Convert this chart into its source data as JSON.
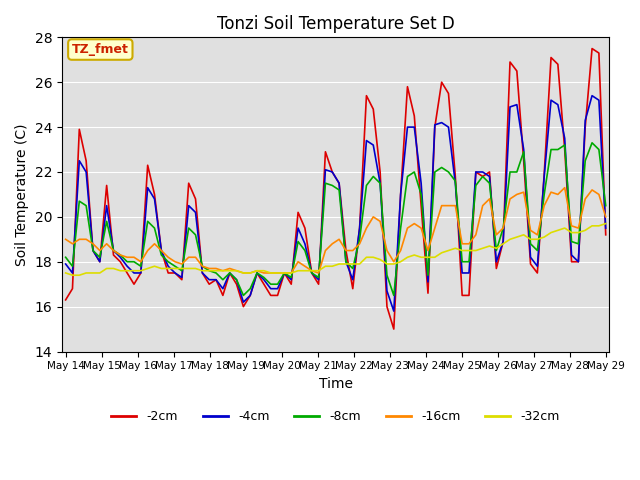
{
  "title": "Tonzi Soil Temperature Set D",
  "xlabel": "Time",
  "ylabel": "Soil Temperature (C)",
  "ylim": [
    14,
    28
  ],
  "yticks": [
    14,
    16,
    18,
    20,
    22,
    24,
    26,
    28
  ],
  "annotation_label": "TZ_fmet",
  "annotation_box_color": "#ffffcc",
  "annotation_box_edge": "#ccaa00",
  "annotation_text_color": "#cc2200",
  "background_color": "#e0e0e0",
  "grid_color": "#ffffff",
  "lines": [
    {
      "label": "-2cm",
      "color": "#dd0000",
      "linewidth": 1.2,
      "values": [
        16.3,
        16.8,
        23.9,
        22.5,
        18.5,
        18.0,
        21.4,
        18.3,
        18.0,
        17.5,
        17.0,
        17.5,
        22.3,
        21.0,
        18.5,
        17.5,
        17.5,
        17.2,
        21.5,
        20.8,
        17.5,
        17.0,
        17.2,
        16.5,
        17.5,
        17.0,
        16.0,
        16.5,
        17.5,
        17.0,
        16.5,
        16.5,
        17.5,
        17.0,
        20.2,
        19.5,
        17.5,
        17.0,
        22.9,
        22.0,
        21.5,
        18.5,
        16.8,
        19.5,
        25.4,
        24.8,
        22.0,
        16.0,
        15.0,
        21.0,
        25.8,
        24.5,
        20.5,
        16.6,
        24.0,
        26.0,
        25.5,
        21.8,
        16.5,
        16.5,
        22.0,
        21.8,
        22.0,
        17.7,
        18.9,
        26.9,
        26.5,
        22.5,
        17.9,
        17.5,
        21.9,
        27.1,
        26.8,
        23.0,
        18.0,
        18.0,
        24.0,
        27.5,
        27.3,
        19.2
      ]
    },
    {
      "label": "-4cm",
      "color": "#0000cc",
      "linewidth": 1.2,
      "values": [
        17.9,
        17.5,
        22.5,
        22.0,
        18.5,
        18.0,
        20.5,
        18.5,
        18.2,
        17.8,
        17.5,
        17.5,
        21.3,
        20.8,
        18.5,
        17.8,
        17.5,
        17.3,
        20.5,
        20.2,
        17.5,
        17.2,
        17.2,
        16.8,
        17.5,
        17.2,
        16.2,
        16.5,
        17.5,
        17.2,
        16.8,
        16.8,
        17.5,
        17.2,
        19.5,
        18.8,
        17.5,
        17.2,
        22.1,
        22.0,
        21.5,
        18.0,
        17.2,
        19.5,
        23.4,
        23.2,
        21.5,
        16.7,
        15.8,
        21.0,
        24.0,
        24.0,
        21.5,
        17.1,
        24.1,
        24.2,
        24.0,
        21.5,
        17.5,
        17.5,
        22.0,
        22.0,
        21.8,
        18.0,
        18.9,
        24.9,
        25.0,
        23.0,
        18.2,
        17.8,
        21.8,
        25.2,
        25.0,
        23.5,
        18.3,
        18.0,
        24.3,
        25.4,
        25.2,
        19.5
      ]
    },
    {
      "label": "-8cm",
      "color": "#00aa00",
      "linewidth": 1.2,
      "values": [
        18.2,
        17.8,
        20.7,
        20.5,
        18.5,
        18.2,
        19.8,
        18.5,
        18.3,
        18.0,
        18.0,
        17.8,
        19.8,
        19.5,
        18.3,
        18.0,
        17.8,
        17.6,
        19.5,
        19.2,
        17.8,
        17.6,
        17.5,
        17.2,
        17.5,
        17.2,
        16.5,
        16.8,
        17.5,
        17.3,
        17.0,
        17.0,
        17.5,
        17.3,
        18.9,
        18.5,
        17.5,
        17.3,
        21.5,
        21.4,
        21.2,
        18.0,
        17.7,
        19.0,
        21.4,
        21.8,
        21.5,
        17.4,
        16.5,
        19.5,
        21.8,
        22.0,
        21.0,
        17.4,
        22.0,
        22.2,
        22.0,
        21.6,
        18.0,
        18.0,
        21.4,
        21.8,
        21.5,
        18.5,
        19.5,
        22.0,
        22.0,
        22.9,
        18.8,
        18.5,
        21.0,
        23.0,
        23.0,
        23.2,
        18.9,
        18.8,
        22.5,
        23.3,
        23.0,
        20.5
      ]
    },
    {
      "label": "-16cm",
      "color": "#ff8800",
      "linewidth": 1.2,
      "values": [
        19.0,
        18.8,
        19.0,
        19.0,
        18.8,
        18.5,
        18.8,
        18.5,
        18.3,
        18.2,
        18.2,
        18.0,
        18.5,
        18.8,
        18.5,
        18.2,
        18.0,
        17.9,
        18.2,
        18.2,
        17.8,
        17.7,
        17.7,
        17.6,
        17.7,
        17.6,
        17.5,
        17.5,
        17.6,
        17.5,
        17.5,
        17.5,
        17.5,
        17.5,
        18.0,
        17.8,
        17.6,
        17.5,
        18.5,
        18.8,
        19.0,
        18.5,
        18.5,
        18.8,
        19.5,
        20.0,
        19.8,
        18.5,
        18.0,
        18.5,
        19.5,
        19.7,
        19.5,
        18.5,
        19.5,
        20.5,
        20.5,
        20.5,
        18.8,
        18.8,
        19.2,
        20.5,
        20.8,
        19.2,
        19.5,
        20.8,
        21.0,
        21.1,
        19.4,
        19.2,
        20.5,
        21.1,
        21.0,
        21.3,
        19.6,
        19.5,
        20.8,
        21.2,
        21.0,
        20.0
      ]
    },
    {
      "label": "-32cm",
      "color": "#dddd00",
      "linewidth": 1.2,
      "values": [
        17.5,
        17.4,
        17.4,
        17.5,
        17.5,
        17.5,
        17.7,
        17.7,
        17.6,
        17.6,
        17.6,
        17.6,
        17.7,
        17.8,
        17.7,
        17.7,
        17.7,
        17.7,
        17.7,
        17.7,
        17.6,
        17.6,
        17.6,
        17.6,
        17.6,
        17.6,
        17.5,
        17.5,
        17.6,
        17.6,
        17.5,
        17.5,
        17.5,
        17.5,
        17.6,
        17.6,
        17.6,
        17.6,
        17.8,
        17.8,
        17.9,
        17.9,
        17.9,
        17.9,
        18.2,
        18.2,
        18.1,
        17.9,
        17.9,
        18.0,
        18.2,
        18.3,
        18.2,
        18.2,
        18.2,
        18.4,
        18.5,
        18.6,
        18.5,
        18.5,
        18.5,
        18.6,
        18.7,
        18.6,
        18.8,
        19.0,
        19.1,
        19.2,
        19.0,
        19.0,
        19.1,
        19.3,
        19.4,
        19.5,
        19.3,
        19.3,
        19.4,
        19.6,
        19.6,
        19.7
      ]
    }
  ],
  "x_start_day": 14,
  "x_end_day": 29,
  "xtick_days": [
    14,
    15,
    16,
    17,
    18,
    19,
    20,
    21,
    22,
    23,
    24,
    25,
    26,
    27,
    28,
    29
  ],
  "month": "May"
}
